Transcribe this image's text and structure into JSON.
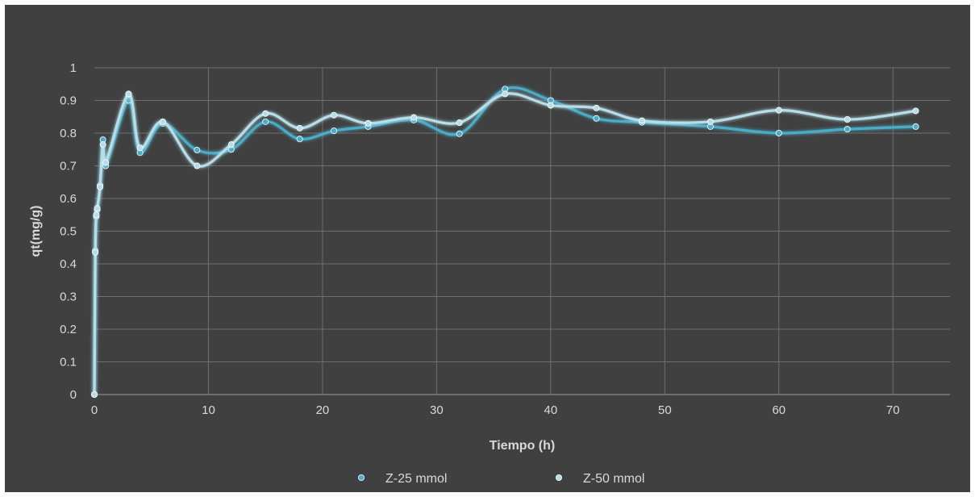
{
  "chart_data": {
    "type": "line",
    "title": "",
    "xlabel": "Tiempo (h)",
    "ylabel": "qt(mg/g)",
    "xlim": [
      0,
      75
    ],
    "ylim": [
      0,
      1
    ],
    "x_ticks": [
      0,
      10,
      20,
      30,
      40,
      50,
      60,
      70
    ],
    "y_ticks": [
      0,
      0.1,
      0.2,
      0.3,
      0.4,
      0.5,
      0.6,
      0.7,
      0.8,
      0.9,
      1
    ],
    "grid": true,
    "smooth": true,
    "legend_position": "bottom",
    "background_color": "#404040",
    "frame_color": "#ffffff",
    "series": [
      {
        "name": "Z-25 mmol",
        "color": "#4bacc6",
        "points": [
          [
            0,
            0
          ],
          [
            0.083,
            0.44
          ],
          [
            0.17,
            0.545
          ],
          [
            0.25,
            0.565
          ],
          [
            0.5,
            0.64
          ],
          [
            0.75,
            0.78
          ],
          [
            1,
            0.7
          ],
          [
            3,
            0.9
          ],
          [
            4,
            0.74
          ],
          [
            6,
            0.83
          ],
          [
            9,
            0.748
          ],
          [
            12,
            0.75
          ],
          [
            15,
            0.835
          ],
          [
            18,
            0.782
          ],
          [
            21,
            0.807
          ],
          [
            24,
            0.82
          ],
          [
            28,
            0.84
          ],
          [
            32,
            0.798
          ],
          [
            36,
            0.935
          ],
          [
            40,
            0.9
          ],
          [
            44,
            0.845
          ],
          [
            48,
            0.833
          ],
          [
            54,
            0.82
          ],
          [
            60,
            0.8
          ],
          [
            66,
            0.812
          ],
          [
            72,
            0.82
          ]
        ]
      },
      {
        "name": "Z-50 mmol",
        "color": "#b7dee8",
        "points": [
          [
            0,
            0
          ],
          [
            0.083,
            0.435
          ],
          [
            0.17,
            0.55
          ],
          [
            0.25,
            0.57
          ],
          [
            0.5,
            0.635
          ],
          [
            0.75,
            0.765
          ],
          [
            1,
            0.71
          ],
          [
            3,
            0.92
          ],
          [
            4,
            0.755
          ],
          [
            6,
            0.835
          ],
          [
            9,
            0.7
          ],
          [
            12,
            0.765
          ],
          [
            15,
            0.86
          ],
          [
            18,
            0.815
          ],
          [
            21,
            0.855
          ],
          [
            24,
            0.83
          ],
          [
            28,
            0.848
          ],
          [
            32,
            0.832
          ],
          [
            36,
            0.92
          ],
          [
            40,
            0.885
          ],
          [
            44,
            0.877
          ],
          [
            48,
            0.838
          ],
          [
            54,
            0.835
          ],
          [
            60,
            0.87
          ],
          [
            66,
            0.842
          ],
          [
            72,
            0.868
          ]
        ]
      }
    ]
  }
}
